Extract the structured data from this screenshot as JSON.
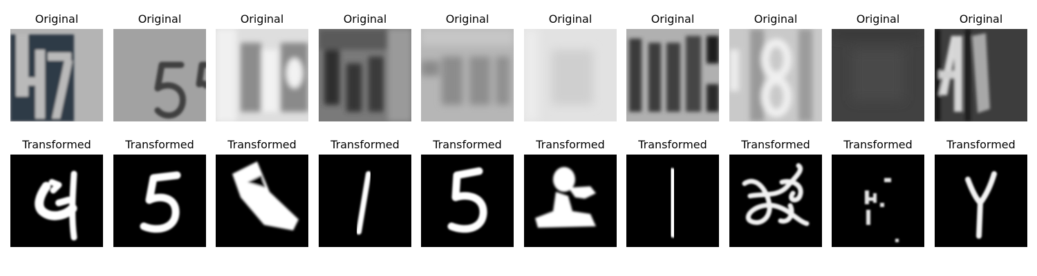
{
  "rows": [
    {
      "title": "Original",
      "panels": [
        {
          "background": "#b4b4b4",
          "theme": "light"
        },
        {
          "background": "#a2a2a2",
          "theme": "light"
        },
        {
          "background": "#dedede",
          "theme": "light"
        },
        {
          "background": "#7a7a7a",
          "theme": "light"
        },
        {
          "background": "#b6b6b6",
          "theme": "light"
        },
        {
          "background": "#e2e2e2",
          "theme": "light"
        },
        {
          "background": "#b0b0b0",
          "theme": "light"
        },
        {
          "background": "#c9c9c9",
          "theme": "light"
        },
        {
          "background": "#414141",
          "theme": "light"
        },
        {
          "background": "#3d3d3d",
          "theme": "light"
        }
      ]
    },
    {
      "title": "Transformed",
      "panels": [
        {
          "background": "#000000",
          "theme": "dark"
        },
        {
          "background": "#000000",
          "theme": "dark"
        },
        {
          "background": "#000000",
          "theme": "dark"
        },
        {
          "background": "#000000",
          "theme": "dark"
        },
        {
          "background": "#000000",
          "theme": "dark"
        },
        {
          "background": "#000000",
          "theme": "dark"
        },
        {
          "background": "#000000",
          "theme": "dark"
        },
        {
          "background": "#000000",
          "theme": "dark"
        },
        {
          "background": "#000000",
          "theme": "dark"
        },
        {
          "background": "#000000",
          "theme": "dark"
        }
      ]
    }
  ]
}
